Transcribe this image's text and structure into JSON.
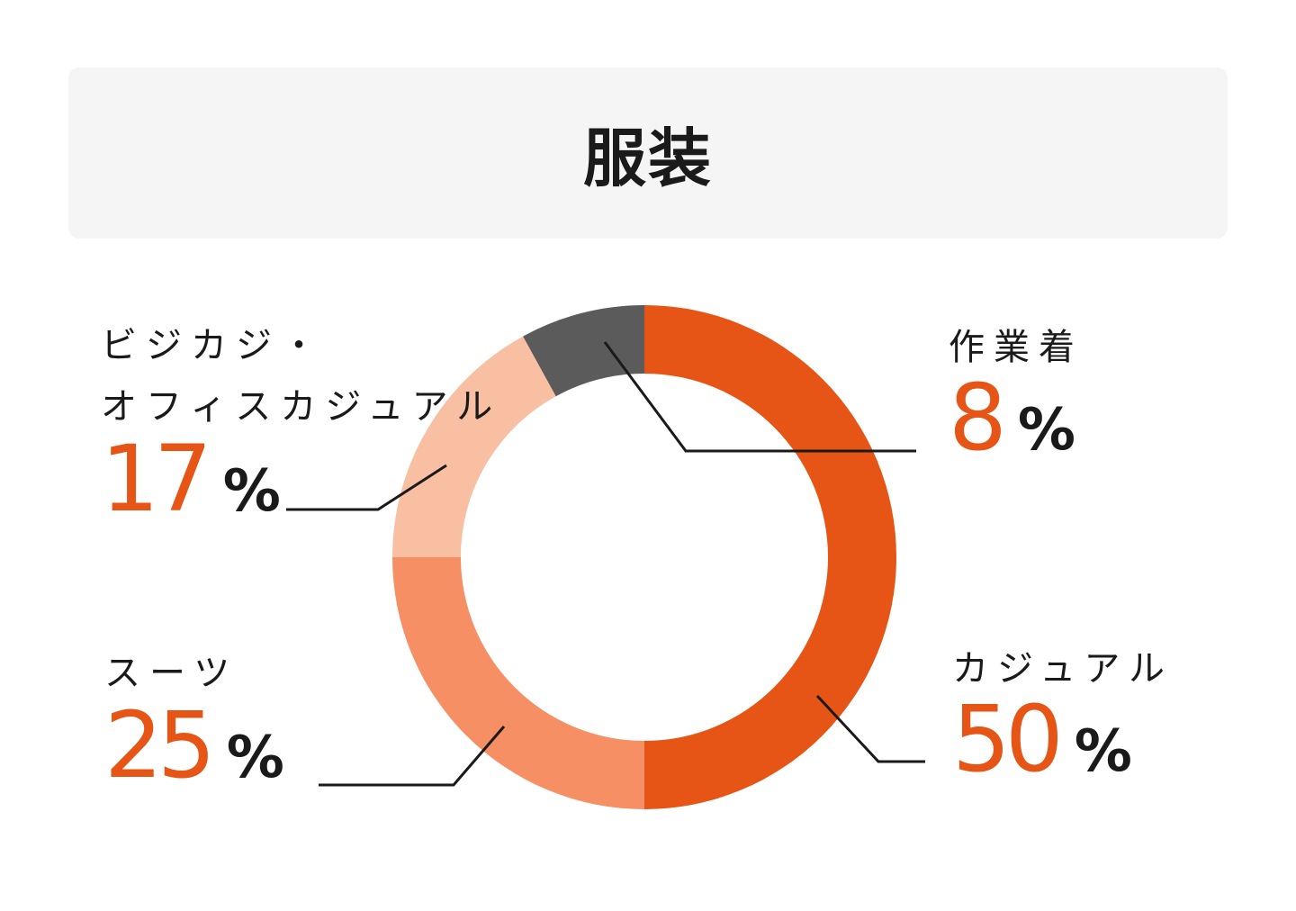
{
  "title": "服装",
  "chart_data": {
    "type": "donut",
    "title": "服装",
    "slices": [
      {
        "label": "カジュアル",
        "value": 50,
        "color": "#e65516"
      },
      {
        "label": "スーツ",
        "value": 25,
        "color": "#f68f64"
      },
      {
        "label": "ビジカジ・オフィスカジュアル",
        "label_lines": [
          "ビジカジ・",
          "オフィスカジュアル"
        ],
        "value": 17,
        "color": "#f8bfa3"
      },
      {
        "label": "作業着",
        "value": 8,
        "color": "#5b5b5b"
      }
    ],
    "unit": "%",
    "start_angle": "12 o'clock",
    "direction": "clockwise"
  },
  "labels": {
    "casual": {
      "name": "カジュアル",
      "value": "50",
      "unit": "%"
    },
    "suit": {
      "name": "スーツ",
      "value": "25",
      "unit": "%"
    },
    "bizcasual": {
      "name_line1": "ビジカジ・",
      "name_line2": "オフィスカジュアル",
      "value": "17",
      "unit": "%"
    },
    "workwear": {
      "name": "作業着",
      "value": "8",
      "unit": "%"
    }
  }
}
